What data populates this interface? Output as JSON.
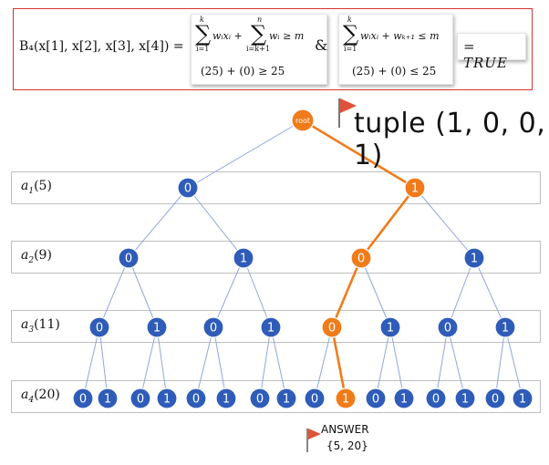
{
  "formula": {
    "lhs": "B₄(x[1], x[2], x[3], x[4]) =",
    "sum1_top": "k",
    "sum1_bottom": "i=1",
    "term1": "wᵢxᵢ +",
    "sum2_top": "n",
    "sum2_bottom": "i=k+1",
    "term2": "wᵢ  ≥ m",
    "check1": "(25) + (0) ≥ 25",
    "amp": "&",
    "sum3_top": "k",
    "sum3_bottom": "i=1",
    "term3": "wᵢxᵢ + wₖ₊₁  ≤ m",
    "check2": "(25) + (0) ≤ 25",
    "result": "= TRUE"
  },
  "tuple_label": "tuple (1, 0, 0, 1)",
  "answer": {
    "title": "ANSWER",
    "set": "{5, 20}"
  },
  "root_label": "root",
  "levels": [
    {
      "name": "a",
      "sub": "1",
      "weight": "(5)"
    },
    {
      "name": "a",
      "sub": "2",
      "weight": "(9)"
    },
    {
      "name": "a",
      "sub": "3",
      "weight": "(11)"
    },
    {
      "name": "a",
      "sub": "4",
      "weight": "(20)"
    }
  ],
  "tree": {
    "level1": [
      "0",
      "1"
    ],
    "level2": [
      "0",
      "1",
      "0",
      "1"
    ],
    "level3": [
      "0",
      "1",
      "0",
      "1",
      "0",
      "1",
      "0",
      "1"
    ],
    "level4": [
      "0",
      "1",
      "0",
      "1",
      "0",
      "1",
      "0",
      "1",
      "0",
      "1",
      "0",
      "1",
      "0",
      "1",
      "0",
      "1"
    ],
    "highlight_path": [
      1,
      2,
      4,
      9
    ]
  },
  "colors": {
    "node_blue": "#2e5cb8",
    "node_orange": "#f07b1a",
    "edge_blue": "#8fa8dc",
    "edge_orange": "#f07b1a",
    "flag_red": "#e0523a",
    "formula_border": "#d8342f"
  }
}
